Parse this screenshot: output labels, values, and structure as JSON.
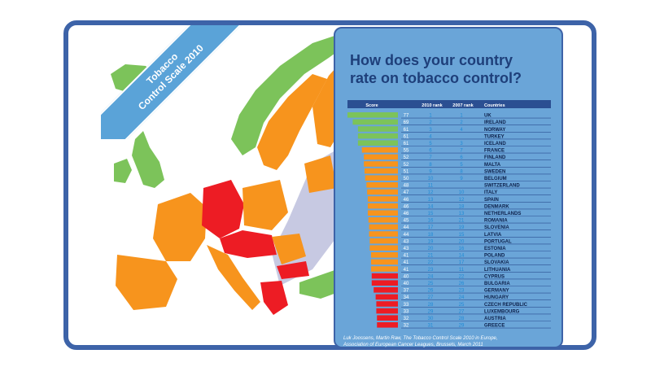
{
  "ribbon": {
    "line1": "Tobacco",
    "line2": "Control Scale 2010"
  },
  "panel": {
    "title_line1": "How does your country",
    "title_line2": "rate on tobacco control?",
    "source_line1": "Luk Joossens, Martin Raw, The Tobacco Control Scale 2010 in Europe,",
    "source_line2": "Association of European Cancer Leagues, Brussels, March 2011"
  },
  "colors": {
    "frame": "#3d63a8",
    "panel": "#6aa5d8",
    "green": "#7cc35a",
    "orange": "#f7941d",
    "red": "#ed1c24",
    "grey": "#c7c9e2",
    "water": "#ffffff"
  },
  "chart_data": {
    "type": "table",
    "columns": [
      "Score",
      "2010 rank",
      "2007 rank",
      "Countries"
    ],
    "rows": [
      {
        "country": "UK",
        "score": 77,
        "rank2010": 1,
        "rank2007": 1,
        "group": "green"
      },
      {
        "country": "IRELAND",
        "score": 69,
        "rank2010": 2,
        "rank2007": 2,
        "group": "green"
      },
      {
        "country": "NORWAY",
        "score": 61,
        "rank2010": 3,
        "rank2007": 4,
        "group": "green"
      },
      {
        "country": "TURKEY",
        "score": 61,
        "rank2010": 4,
        "rank2007": "",
        "group": "green"
      },
      {
        "country": "ICELAND",
        "score": 61,
        "rank2010": 5,
        "rank2007": 3,
        "group": "green"
      },
      {
        "country": "FRANCE",
        "score": 55,
        "rank2010": 6,
        "rank2007": 7,
        "group": "orange"
      },
      {
        "country": "FINLAND",
        "score": 52,
        "rank2010": 7,
        "rank2007": 6,
        "group": "orange"
      },
      {
        "country": "MALTA",
        "score": 52,
        "rank2010": 8,
        "rank2007": 5,
        "group": "orange"
      },
      {
        "country": "SWEDEN",
        "score": 51,
        "rank2010": 9,
        "rank2007": 8,
        "group": "orange"
      },
      {
        "country": "BELGIUM",
        "score": 50,
        "rank2010": 10,
        "rank2007": 9,
        "group": "orange"
      },
      {
        "country": "SWITZERLAND",
        "score": 48,
        "rank2010": 11,
        "rank2007": "",
        "group": "orange"
      },
      {
        "country": "ITALY",
        "score": 47,
        "rank2010": 12,
        "rank2007": 10,
        "group": "orange"
      },
      {
        "country": "SPAIN",
        "score": 46,
        "rank2010": 13,
        "rank2007": 12,
        "group": "orange"
      },
      {
        "country": "DENMARK",
        "score": 46,
        "rank2010": 14,
        "rank2007": 18,
        "group": "orange"
      },
      {
        "country": "NETHERLANDS",
        "score": 46,
        "rank2010": 15,
        "rank2007": 13,
        "group": "orange"
      },
      {
        "country": "ROMANIA",
        "score": 45,
        "rank2010": 16,
        "rank2007": 21,
        "group": "orange"
      },
      {
        "country": "SLOVENIA",
        "score": 44,
        "rank2010": 17,
        "rank2007": 19,
        "group": "orange"
      },
      {
        "country": "LATVIA",
        "score": 44,
        "rank2010": 18,
        "rank2007": 15,
        "group": "orange"
      },
      {
        "country": "PORTUGAL",
        "score": 43,
        "rank2010": 19,
        "rank2007": 20,
        "group": "orange"
      },
      {
        "country": "ESTONIA",
        "score": 43,
        "rank2010": 20,
        "rank2007": 16,
        "group": "orange"
      },
      {
        "country": "POLAND",
        "score": 41,
        "rank2010": 21,
        "rank2007": 14,
        "group": "orange"
      },
      {
        "country": "SLOVAKIA",
        "score": 41,
        "rank2010": 22,
        "rank2007": 17,
        "group": "orange"
      },
      {
        "country": "LITHUANIA",
        "score": 41,
        "rank2010": 23,
        "rank2007": 11,
        "group": "orange"
      },
      {
        "country": "CYPRUS",
        "score": 40,
        "rank2010": 24,
        "rank2007": 22,
        "group": "red"
      },
      {
        "country": "BULGARIA",
        "score": 40,
        "rank2010": 25,
        "rank2007": 26,
        "group": "red"
      },
      {
        "country": "GERMANY",
        "score": 37,
        "rank2010": 26,
        "rank2007": 23,
        "group": "red"
      },
      {
        "country": "HUNGARY",
        "score": 34,
        "rank2010": 27,
        "rank2007": 24,
        "group": "red"
      },
      {
        "country": "CZECH REPUBLIC",
        "score": 33,
        "rank2010": 28,
        "rank2007": 25,
        "group": "red"
      },
      {
        "country": "LUXEMBOURG",
        "score": 33,
        "rank2010": 29,
        "rank2007": 27,
        "group": "red"
      },
      {
        "country": "AUSTRIA",
        "score": 32,
        "rank2010": 30,
        "rank2007": 28,
        "group": "red"
      },
      {
        "country": "GREECE",
        "score": 32,
        "rank2010": 31,
        "rank2007": 29,
        "group": "red"
      }
    ],
    "score_range": [
      0,
      77
    ]
  }
}
